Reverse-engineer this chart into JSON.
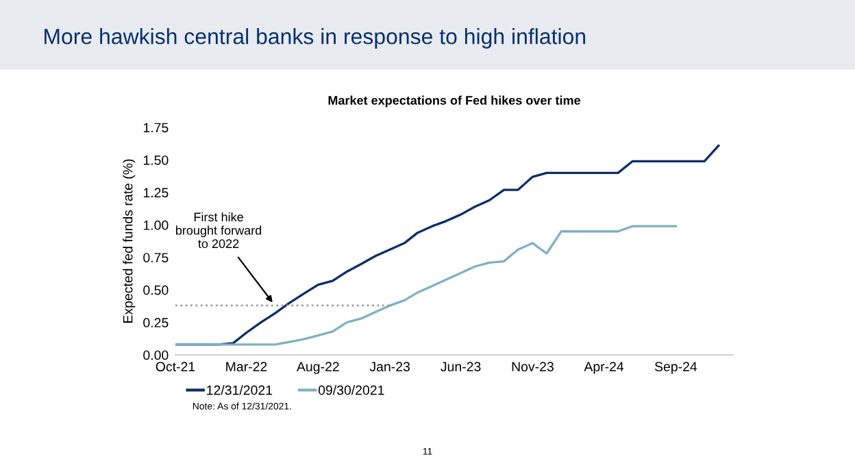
{
  "chart_data": {
    "type": "line",
    "title": "More hawkish central banks in response to high inflation",
    "subtitle": "Market expectations of Fed hikes over time",
    "ylabel": "Expected fed funds rate (%)",
    "x": [
      "2021-10",
      "2021-11",
      "2021-12",
      "2022-01",
      "2022-02",
      "2022-03",
      "2022-04",
      "2022-05",
      "2022-06",
      "2022-07",
      "2022-08",
      "2022-09",
      "2022-10",
      "2022-11",
      "2022-12",
      "2023-01",
      "2023-02",
      "2023-03",
      "2023-04",
      "2023-05",
      "2023-06",
      "2023-07",
      "2023-08",
      "2023-09",
      "2023-10",
      "2023-11",
      "2023-12",
      "2024-01",
      "2024-02",
      "2024-03",
      "2024-04",
      "2024-05",
      "2024-06",
      "2024-07",
      "2024-08",
      "2024-09",
      "2024-10",
      "2024-11",
      "2024-12"
    ],
    "series": [
      {
        "name": "12/31/2021",
        "color": "#0b2d6b",
        "values": [
          0.08,
          0.08,
          0.08,
          0.08,
          0.09,
          0.17,
          0.25,
          0.32,
          0.4,
          0.47,
          0.54,
          0.57,
          0.64,
          0.7,
          0.76,
          0.81,
          0.86,
          0.94,
          0.99,
          1.03,
          1.08,
          1.14,
          1.19,
          1.27,
          1.27,
          1.37,
          1.4,
          1.4,
          1.4,
          1.4,
          1.4,
          1.4,
          1.49,
          1.49,
          1.49,
          1.49,
          1.49,
          1.49,
          1.61
        ]
      },
      {
        "name": "09/30/2021",
        "color": "#7fb0c8",
        "values": [
          0.08,
          0.08,
          0.08,
          0.08,
          0.08,
          0.08,
          0.08,
          0.08,
          0.1,
          0.12,
          0.15,
          0.18,
          0.25,
          0.28,
          0.33,
          0.38,
          0.42,
          0.48,
          0.53,
          0.58,
          0.63,
          0.68,
          0.71,
          0.72,
          0.81,
          0.86,
          0.78,
          0.95,
          0.95,
          0.95,
          0.95,
          0.95,
          0.99,
          0.99,
          0.99,
          0.99,
          null,
          null,
          null
        ]
      },
      {
        "color": "#9a9a9a",
        "line_style": "dotted",
        "x": [
          "2021-10",
          "2023-01"
        ],
        "values": [
          0.38,
          0.38
        ]
      }
    ],
    "xlim": [
      "2021-10",
      "2025-01"
    ],
    "xticks": [
      {
        "value": "2021-10",
        "label": "Oct-21"
      },
      {
        "value": "2022-03",
        "label": "Mar-22"
      },
      {
        "value": "2022-08",
        "label": "Aug-22"
      },
      {
        "value": "2023-01",
        "label": "Jan-23"
      },
      {
        "value": "2023-06",
        "label": "Jun-23"
      },
      {
        "value": "2023-11",
        "label": "Nov-23"
      },
      {
        "value": "2024-04",
        "label": "Apr-24"
      },
      {
        "value": "2024-09",
        "label": "Sep-24"
      }
    ],
    "ylim": [
      0,
      1.75
    ],
    "yticks": [
      {
        "value": 0,
        "label": "0.00"
      },
      {
        "value": 0.25,
        "label": "0.25"
      },
      {
        "value": 0.5,
        "label": "0.50"
      },
      {
        "value": 0.75,
        "label": "0.75"
      },
      {
        "value": 1,
        "label": "1.00"
      },
      {
        "value": 1.25,
        "label": "1.25"
      },
      {
        "value": 1.5,
        "label": "1.50"
      },
      {
        "value": 1.75,
        "label": "1.75"
      }
    ],
    "grid": false,
    "legend": "bottom",
    "marker": "none",
    "line_style": "solid",
    "annotations": [
      {
        "text": "First hike\nbrought forward\nto 2022",
        "x": "2022-05",
        "y": 0.38
      },
      "Note: As of 12/31/2021.",
      "11"
    ]
  }
}
